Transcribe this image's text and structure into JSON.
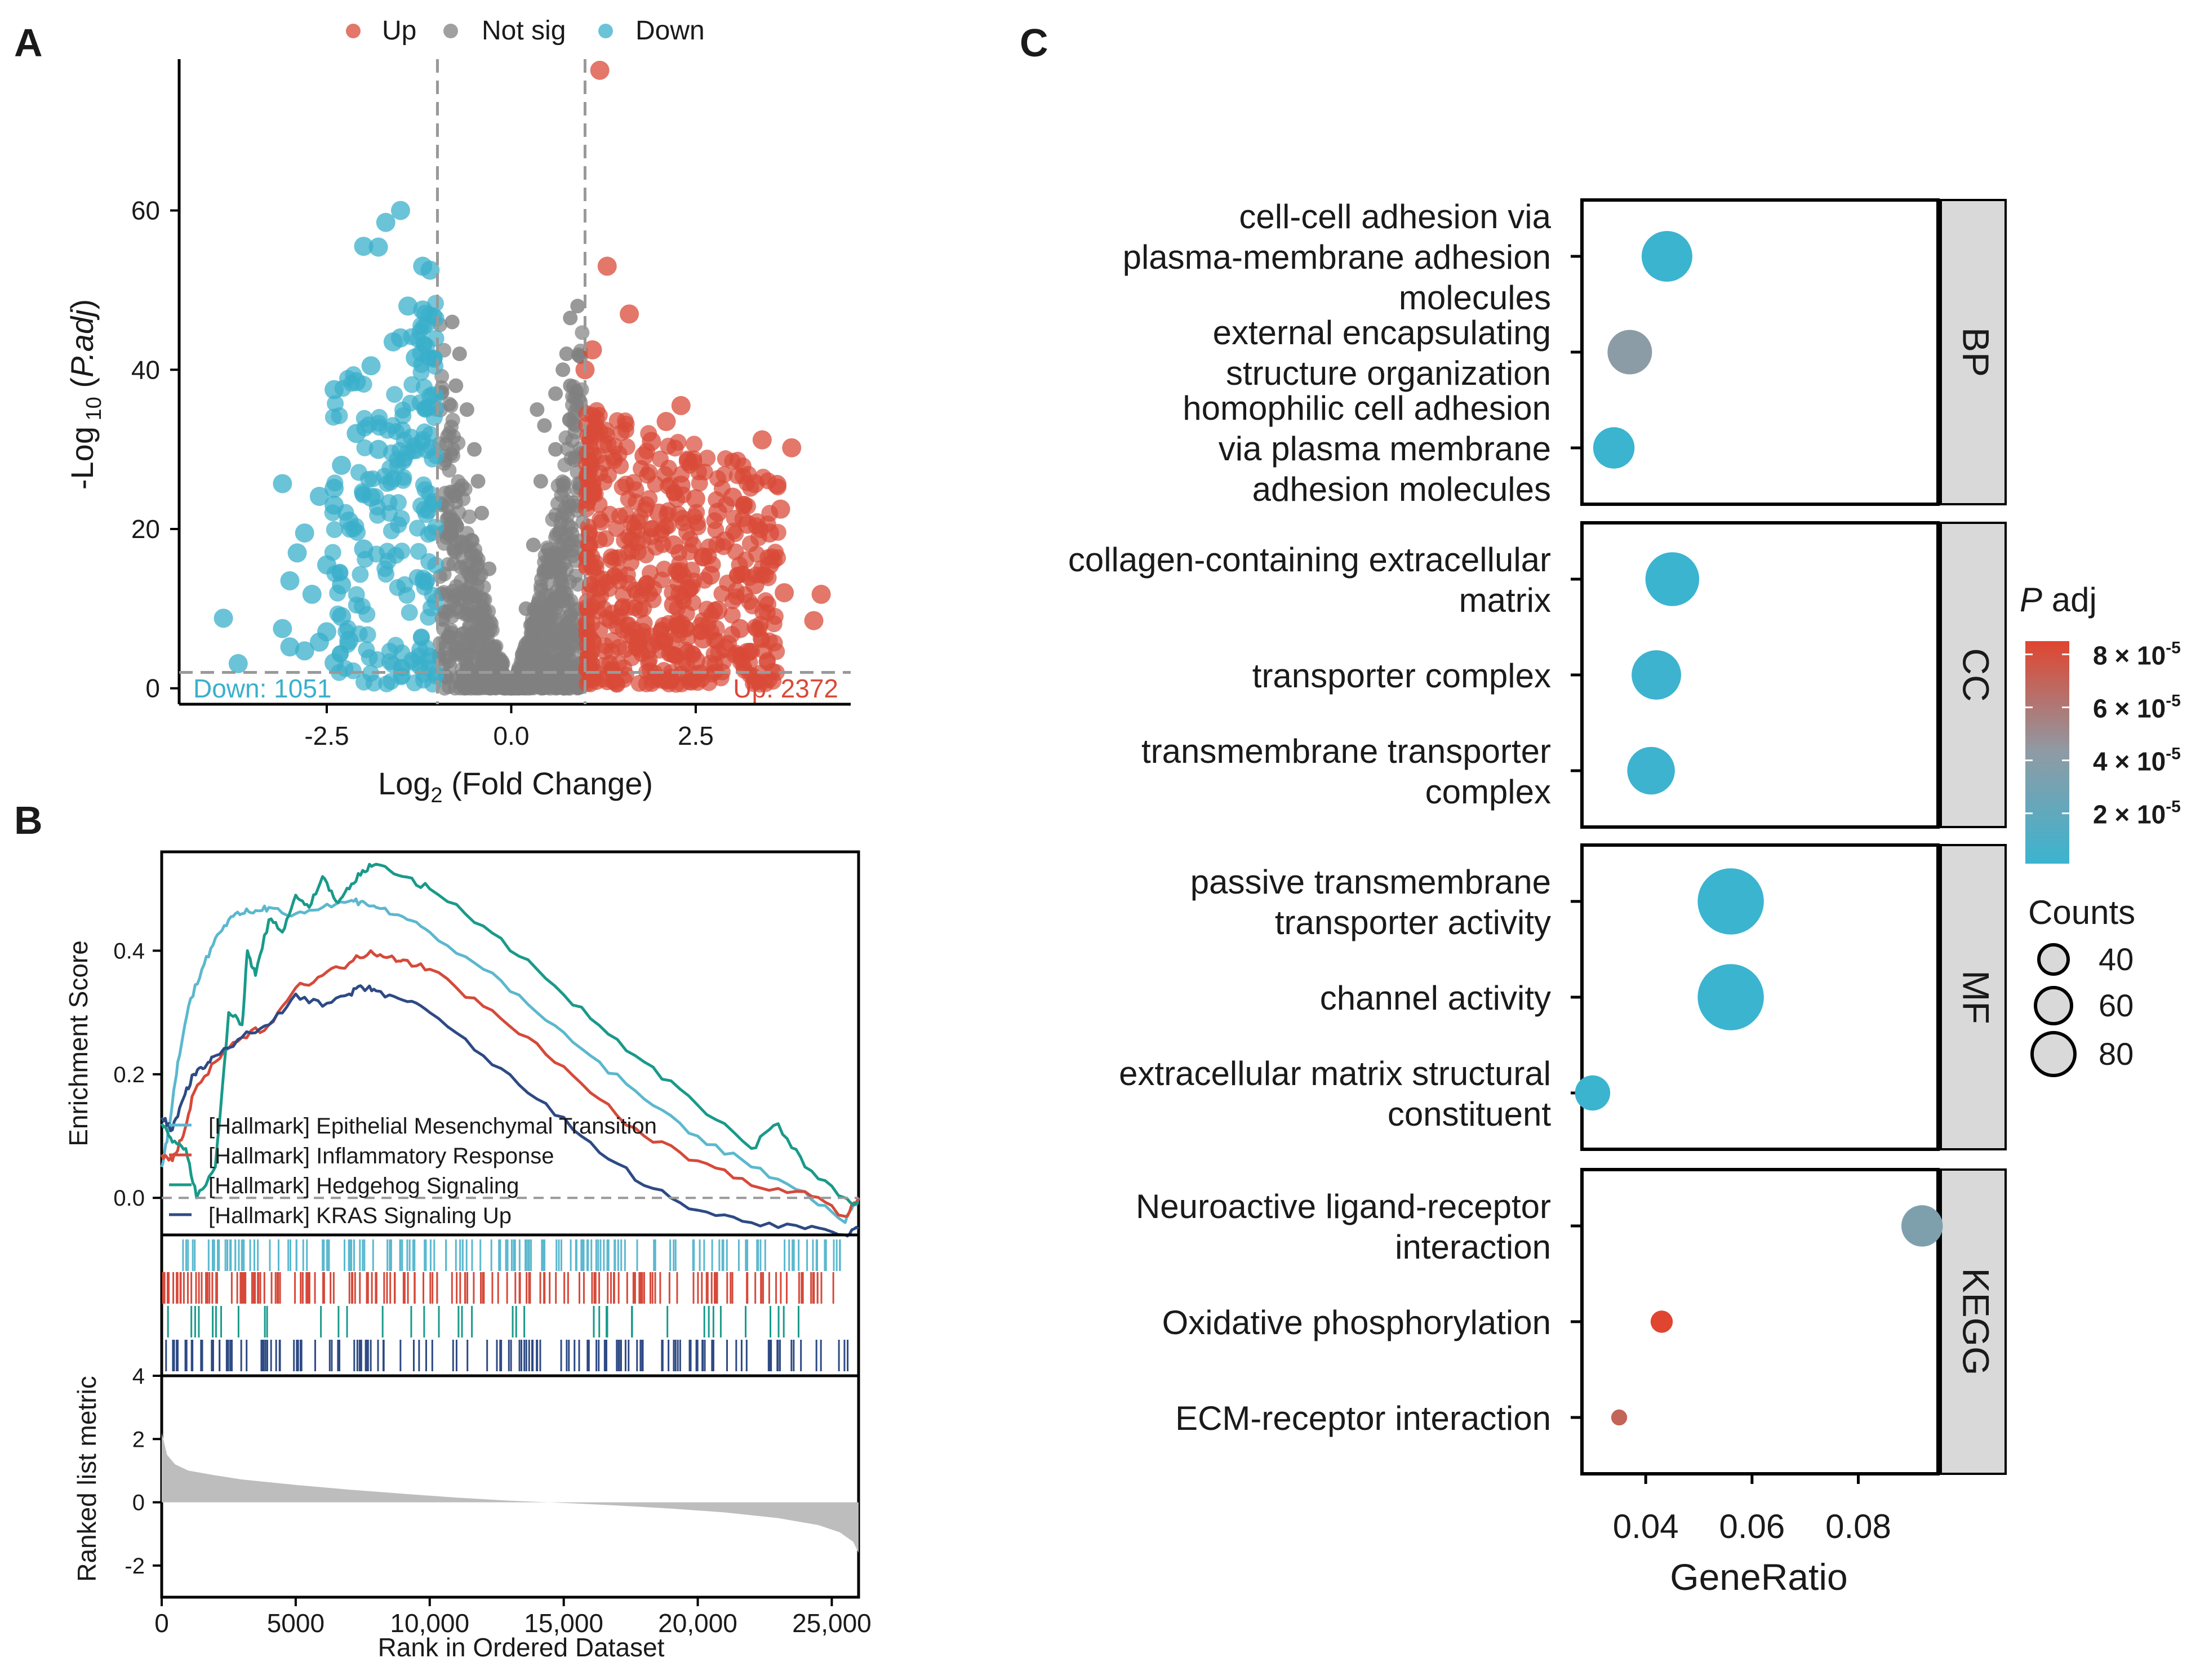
{
  "panels": {
    "a": "A",
    "b": "B",
    "c": "C"
  },
  "colors": {
    "up": "#D94A38",
    "down": "#3AAFCB",
    "notsig": "#808080",
    "emt": "#5BB8CE",
    "inflammatory": "#D6493A",
    "hedgehog": "#199A8A",
    "kras": "#2E4A84",
    "padj_high": "#E0452F",
    "padj_mid": "#8E9BA5",
    "padj_low": "#3BB4D0",
    "strip": "#D9D9D9",
    "ranked_fill": "#BDBDBD"
  },
  "chart_data": [
    {
      "id": "volcano",
      "type": "scatter",
      "title": "",
      "xlabel_base": "Log",
      "xlabel_sub": "2",
      "xlabel_rest": " (Fold Change)",
      "ylabel_prefix": "-Log",
      "ylabel_sub": " 10",
      "ylabel_mid": " (",
      "ylabel_italic": "P.adj",
      "ylabel_end": ")",
      "xlim": [
        -4.5,
        4.6
      ],
      "ylim": [
        -2,
        79
      ],
      "xticks": [
        -2.5,
        0.0,
        2.5
      ],
      "xtick_labels": [
        "-2.5",
        "0.0",
        "2.5"
      ],
      "yticks": [
        0,
        20,
        40,
        60
      ],
      "ytick_labels": [
        "0",
        "20",
        "40",
        "60"
      ],
      "fc_threshold": [
        -1,
        1
      ],
      "p_threshold": 2,
      "legend": [
        "Up",
        "Not sig",
        "Down"
      ],
      "down_label": "Down: 1051",
      "up_label": "Up: 2372",
      "up_points": [
        [
          1.2,
          77.6
        ],
        [
          1.3,
          53
        ],
        [
          1.6,
          47
        ],
        [
          1.1,
          42.5
        ],
        [
          1.0,
          40
        ],
        [
          2.3,
          35.5
        ],
        [
          3.4,
          31.2
        ],
        [
          3.8,
          30.2
        ],
        [
          1.8,
          29.2
        ],
        [
          3.3,
          25.7
        ],
        [
          3.6,
          25.6
        ],
        [
          3.65,
          22.5
        ],
        [
          2.3,
          25.5
        ],
        [
          2.5,
          23.8
        ],
        [
          2.8,
          22.1
        ],
        [
          3.2,
          20.6
        ],
        [
          3.5,
          19.5
        ],
        [
          4.2,
          11.8
        ],
        [
          4.1,
          8.5
        ],
        [
          3.5,
          15.5
        ],
        [
          3.3,
          13
        ],
        [
          3.7,
          12
        ],
        [
          2.9,
          18.5
        ],
        [
          2.6,
          16.5
        ],
        [
          2.7,
          14.2
        ],
        [
          2.4,
          12.5
        ],
        [
          2.2,
          10.5
        ],
        [
          2.8,
          9.8
        ],
        [
          3.1,
          7.5
        ],
        [
          2.6,
          6.2
        ],
        [
          2.0,
          22
        ],
        [
          2.2,
          18
        ],
        [
          3.0,
          24
        ],
        [
          1.9,
          31
        ],
        [
          2.4,
          28.5
        ],
        [
          2.1,
          33.5
        ],
        [
          2.0,
          6
        ],
        [
          2.5,
          3.5
        ],
        [
          3.2,
          4.5
        ],
        [
          2.9,
          5
        ]
      ],
      "down_points": [
        [
          -1.5,
          60
        ],
        [
          -1.7,
          58.5
        ],
        [
          -2.0,
          55.5
        ],
        [
          -1.8,
          55.4
        ],
        [
          -1.2,
          53
        ],
        [
          -1.1,
          52.5
        ],
        [
          -1.4,
          48
        ],
        [
          -1.2,
          47.5
        ],
        [
          -1.6,
          43.5
        ],
        [
          -1.9,
          40.5
        ],
        [
          -2.1,
          38.5
        ],
        [
          -2.4,
          37.5
        ],
        [
          -1.5,
          44
        ],
        [
          -1.3,
          41.5
        ],
        [
          -3.1,
          25.7
        ],
        [
          -2.4,
          25.1
        ],
        [
          -2.4,
          23
        ],
        [
          -2.6,
          24.1
        ],
        [
          -1.8,
          30
        ],
        [
          -2.1,
          32
        ],
        [
          -2.3,
          28
        ],
        [
          -2.2,
          21
        ],
        [
          -2.8,
          19.5
        ],
        [
          -2.9,
          17
        ],
        [
          -3.0,
          13.5
        ],
        [
          -2.5,
          15.5
        ],
        [
          -2.3,
          13
        ],
        [
          -2.7,
          11.8
        ],
        [
          -3.9,
          8.8
        ],
        [
          -3.1,
          7.5
        ],
        [
          -3.0,
          5.2
        ],
        [
          -2.8,
          4.7
        ],
        [
          -2.3,
          9
        ],
        [
          -2.5,
          7.1
        ],
        [
          -3.7,
          3.1
        ],
        [
          -2.4,
          3.2
        ],
        [
          -1.9,
          24
        ],
        [
          -2.0,
          17.5
        ],
        [
          -2.6,
          5.8
        ],
        [
          -2.2,
          6
        ]
      ],
      "notsig_points": [
        [
          0.9,
          48
        ],
        [
          0.8,
          46.5
        ],
        [
          0.75,
          42
        ],
        [
          0.7,
          40
        ],
        [
          0.8,
          38
        ],
        [
          0.6,
          37
        ],
        [
          0.35,
          35
        ],
        [
          0.45,
          33
        ],
        [
          0.6,
          30
        ],
        [
          0.4,
          26
        ],
        [
          -0.8,
          46
        ],
        [
          -0.7,
          42
        ],
        [
          -0.75,
          38
        ],
        [
          -0.6,
          35
        ],
        [
          -0.5,
          30
        ],
        [
          -0.45,
          26
        ],
        [
          -0.4,
          22
        ],
        [
          0.3,
          18
        ],
        [
          -0.3,
          15
        ],
        [
          0.2,
          10
        ]
      ]
    },
    {
      "id": "gsea",
      "type": "line",
      "ylabel": "Enrichment Score",
      "ylim": [
        -0.06,
        0.56
      ],
      "yticks": [
        0.0,
        0.2,
        0.4
      ],
      "ytick_labels": [
        "0.0",
        "0.2",
        "0.4"
      ],
      "xlim": [
        0,
        26000
      ],
      "series": [
        {
          "name": "[Hallmark] Epithelial Mesenchymal Transition",
          "color_key": "emt",
          "x": [
            0,
            300,
            600,
            1000,
            1500,
            2000,
            2500,
            3000,
            3500,
            4000,
            5000,
            6000,
            7000,
            7500,
            8000,
            9000,
            10000,
            12000,
            14000,
            16000,
            18000,
            20000,
            22000,
            24000,
            25500,
            26000
          ],
          "y": [
            0.05,
            0.12,
            0.22,
            0.31,
            0.37,
            0.42,
            0.45,
            0.46,
            0.465,
            0.47,
            0.46,
            0.47,
            0.48,
            0.48,
            0.47,
            0.455,
            0.43,
            0.37,
            0.3,
            0.23,
            0.16,
            0.1,
            0.05,
            0.01,
            -0.04,
            0.0
          ]
        },
        {
          "name": "[Hallmark] Inflammatory Response",
          "color_key": "inflammatory",
          "x": [
            0,
            400,
            800,
            1200,
            2000,
            3000,
            4000,
            5000,
            6000,
            7000,
            7800,
            8500,
            9000,
            10000,
            12000,
            14000,
            16000,
            18000,
            20000,
            22000,
            24000,
            25500,
            26000
          ],
          "y": [
            0.07,
            0.06,
            0.1,
            0.17,
            0.22,
            0.26,
            0.28,
            0.34,
            0.36,
            0.38,
            0.4,
            0.39,
            0.385,
            0.37,
            0.31,
            0.25,
            0.17,
            0.1,
            0.06,
            0.02,
            0.01,
            -0.03,
            0.0
          ]
        },
        {
          "name": "[Hallmark] Hedgehog Signaling",
          "color_key": "hedgehog",
          "x": [
            0,
            400,
            900,
            1300,
            2000,
            2500,
            3000,
            3200,
            3500,
            4000,
            4500,
            5000,
            5500,
            6000,
            6500,
            7000,
            7500,
            8000,
            9000,
            10000,
            12000,
            14000,
            16000,
            18000,
            20000,
            22000,
            23000,
            24000,
            25500,
            26000
          ],
          "y": [
            0.12,
            0.09,
            0.08,
            0.0,
            0.05,
            0.3,
            0.28,
            0.4,
            0.36,
            0.45,
            0.43,
            0.49,
            0.47,
            0.52,
            0.48,
            0.5,
            0.53,
            0.54,
            0.52,
            0.5,
            0.44,
            0.37,
            0.29,
            0.22,
            0.15,
            0.08,
            0.12,
            0.05,
            0.0,
            -0.01
          ]
        },
        {
          "name": "[Hallmark] KRAS Signaling Up",
          "color_key": "kras",
          "x": [
            0,
            400,
            800,
            1200,
            1600,
            2000,
            3000,
            4000,
            5000,
            6000,
            7000,
            7500,
            8000,
            9000,
            10000,
            12000,
            14000,
            16000,
            18000,
            20000,
            22000,
            24000,
            25500,
            26000
          ],
          "y": [
            0.13,
            0.11,
            0.16,
            0.2,
            0.21,
            0.23,
            0.26,
            0.28,
            0.33,
            0.31,
            0.33,
            0.34,
            0.335,
            0.32,
            0.3,
            0.23,
            0.16,
            0.09,
            0.02,
            -0.02,
            -0.04,
            -0.05,
            -0.06,
            -0.05
          ]
        }
      ],
      "hit_counts": [
        150,
        180,
        40,
        140
      ]
    },
    {
      "id": "ranked",
      "type": "area",
      "ylabel": "Ranked list metric",
      "xlabel": "Rank in Ordered Dataset",
      "xlim": [
        0,
        26000
      ],
      "ylim": [
        -3,
        4
      ],
      "yticks": [
        -2,
        0,
        2,
        4
      ],
      "ytick_labels": [
        "-2",
        "0",
        "2",
        "4"
      ],
      "xticks": [
        0,
        5000,
        10000,
        15000,
        20000,
        25000
      ],
      "xtick_labels": [
        "0",
        "5000",
        "10,000",
        "15,000",
        "20,000",
        "25,000"
      ],
      "x": [
        0,
        200,
        500,
        1000,
        2000,
        3000,
        5000,
        7000,
        9000,
        11000,
        13000,
        15000,
        17000,
        19000,
        21000,
        23000,
        24500,
        25300,
        25800,
        26000
      ],
      "y": [
        2.2,
        1.5,
        1.2,
        1.0,
        0.85,
        0.72,
        0.55,
        0.4,
        0.27,
        0.15,
        0.05,
        -0.02,
        -0.1,
        -0.2,
        -0.32,
        -0.5,
        -0.72,
        -0.95,
        -1.25,
        -1.6
      ]
    },
    {
      "id": "go_dot",
      "type": "scatter",
      "xlabel": "GeneRatio",
      "xlim": [
        0.028,
        0.095
      ],
      "xticks": [
        0.04,
        0.06,
        0.08
      ],
      "xtick_labels": [
        "0.04",
        "0.06",
        "0.08"
      ],
      "legend_padj_title_italic": "P",
      "legend_padj_title_rest": " adj",
      "legend_padj_labels": [
        "8 × 10",
        "6 × 10",
        "4 × 10",
        "2 × 10"
      ],
      "legend_padj_exp": "-5",
      "legend_padj_values": [
        8e-05,
        6e-05,
        4e-05,
        2e-05
      ],
      "legend_counts_title": "Counts",
      "legend_counts_labels": [
        "40",
        "60",
        "80"
      ],
      "legend_counts_values": [
        40,
        60,
        80
      ],
      "facets": [
        {
          "name": "BP",
          "terms": [
            {
              "lines": [
                "cell-cell adhesion via",
                "plasma-membrane adhesion",
                "molecules"
              ],
              "ratio": 0.044,
              "count": 70,
              "padj": 1e-06
            },
            {
              "lines": [
                "external encapsulating",
                "structure organization"
              ],
              "ratio": 0.037,
              "count": 60,
              "padj": 4.2e-05
            },
            {
              "lines": [
                "homophilic cell adhesion",
                "via plasma membrane",
                "adhesion molecules"
              ],
              "ratio": 0.034,
              "count": 55,
              "padj": 1e-06
            }
          ]
        },
        {
          "name": "CC",
          "terms": [
            {
              "lines": [
                "collagen-containing extracellular",
                "matrix"
              ],
              "ratio": 0.045,
              "count": 75,
              "padj": 1e-06
            },
            {
              "lines": [
                "transporter complex"
              ],
              "ratio": 0.042,
              "count": 68,
              "padj": 2e-06
            },
            {
              "lines": [
                "transmembrane transporter",
                "complex"
              ],
              "ratio": 0.041,
              "count": 65,
              "padj": 2e-06
            }
          ]
        },
        {
          "name": "MF",
          "terms": [
            {
              "lines": [
                "passive transmembrane",
                "transporter activity"
              ],
              "ratio": 0.056,
              "count": 95,
              "padj": 1e-06
            },
            {
              "lines": [
                "channel activity"
              ],
              "ratio": 0.056,
              "count": 95,
              "padj": 1e-06
            },
            {
              "lines": [
                "extracellular matrix structural",
                "constituent"
              ],
              "ratio": 0.03,
              "count": 45,
              "padj": 1e-06
            }
          ]
        },
        {
          "name": "KEGG",
          "terms": [
            {
              "lines": [
                "Neuroactive ligand-receptor",
                "interaction"
              ],
              "ratio": 0.092,
              "count": 55,
              "padj": 3.5e-05
            },
            {
              "lines": [
                "Oxidative phosphorylation"
              ],
              "ratio": 0.043,
              "count": 24,
              "padj": 8.5e-05
            },
            {
              "lines": [
                "ECM-receptor interaction"
              ],
              "ratio": 0.035,
              "count": 14,
              "padj": 7e-05
            }
          ]
        }
      ]
    }
  ]
}
